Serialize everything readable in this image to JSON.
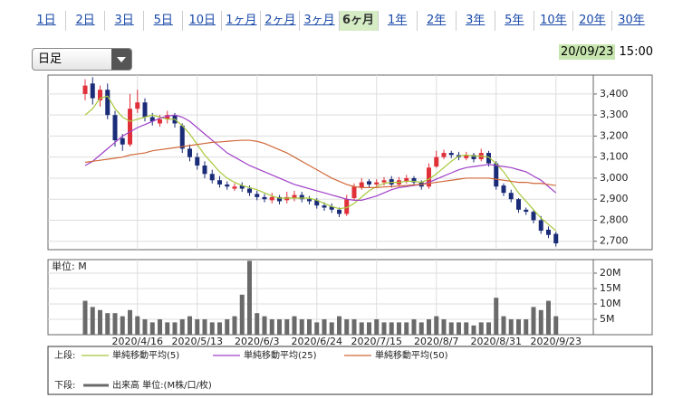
{
  "tabs": [
    "1日",
    "2日",
    "3日",
    "5日",
    "10日",
    "1ヶ月",
    "2ヶ月",
    "3ヶ月",
    "6ヶ月",
    "1年",
    "2年",
    "3年",
    "5年",
    "10年",
    "20年",
    "30年"
  ],
  "selected_tab": 8,
  "dropdown": "日足",
  "timestamp": {
    "date": "20/09/23",
    "time": "15:00"
  },
  "chart_data": [
    {
      "type": "candlestick",
      "legend_prefix": "上段:",
      "up_color": "#e0303a",
      "down_color": "#1a2c78",
      "open": [
        3400,
        3450,
        3370,
        3420,
        3300,
        3190,
        3160,
        3330,
        3360,
        3290,
        3260,
        3280,
        3300,
        3250,
        3140,
        3100,
        3060,
        3020,
        2990,
        2970,
        2950,
        2965,
        2950,
        2925,
        2910,
        2895,
        2910,
        2895,
        2905,
        2920,
        2900,
        2895,
        2870,
        2865,
        2850,
        2830,
        2905,
        2955,
        2985,
        2970,
        2980,
        2995,
        2970,
        2985,
        3000,
        2980,
        2960,
        3055,
        3100,
        3120,
        3110,
        3095,
        3110,
        3090,
        3120,
        3070,
        2965,
        2930,
        2900,
        2850,
        2840,
        2800,
        2755,
        2735
      ],
      "high": [
        3470,
        3480,
        3440,
        3450,
        3320,
        3210,
        3400,
        3420,
        3380,
        3310,
        3300,
        3320,
        3310,
        3260,
        3160,
        3120,
        3080,
        3040,
        3010,
        2985,
        2975,
        2980,
        2965,
        2940,
        2925,
        2930,
        2920,
        2935,
        2940,
        2935,
        2915,
        2905,
        2885,
        2880,
        2860,
        2920,
        2975,
        3000,
        2995,
        2995,
        3005,
        3010,
        3005,
        3015,
        3010,
        2990,
        3070,
        3130,
        3135,
        3130,
        3125,
        3125,
        3120,
        3140,
        3130,
        3080,
        2975,
        2945,
        2905,
        2860,
        2850,
        2820,
        2770,
        2745
      ],
      "low": [
        3370,
        3350,
        3340,
        3280,
        3150,
        3130,
        3150,
        3310,
        3270,
        3250,
        3245,
        3260,
        3240,
        3120,
        3080,
        3040,
        3000,
        2975,
        2955,
        2945,
        2940,
        2935,
        2915,
        2895,
        2885,
        2880,
        2875,
        2880,
        2890,
        2885,
        2875,
        2855,
        2845,
        2835,
        2815,
        2820,
        2895,
        2945,
        2955,
        2960,
        2965,
        2955,
        2960,
        2975,
        2965,
        2945,
        2950,
        3050,
        3090,
        3095,
        3085,
        3085,
        3075,
        3080,
        3055,
        2945,
        2915,
        2885,
        2835,
        2825,
        2785,
        2735,
        2715,
        2675
      ],
      "close": [
        3440,
        3380,
        3420,
        3300,
        3180,
        3160,
        3330,
        3360,
        3290,
        3270,
        3280,
        3300,
        3260,
        3140,
        3100,
        3060,
        3020,
        2990,
        2970,
        2960,
        2960,
        2950,
        2930,
        2910,
        2900,
        2910,
        2890,
        2910,
        2920,
        2900,
        2890,
        2870,
        2860,
        2850,
        2830,
        2900,
        2960,
        2980,
        2970,
        2980,
        2990,
        2970,
        2990,
        3000,
        2980,
        2960,
        3050,
        3100,
        3120,
        3110,
        3100,
        3110,
        3090,
        3120,
        3070,
        2960,
        2930,
        2900,
        2850,
        2840,
        2800,
        2750,
        2730,
        2690
      ],
      "series": [
        {
          "name": "単純移動平均(5)",
          "color": "#a8c83a",
          "values": [
            3300,
            3330,
            3380,
            3390,
            3330,
            3290,
            3270,
            3280,
            3290,
            3300,
            3290,
            3280,
            3280,
            3250,
            3210,
            3160,
            3110,
            3070,
            3030,
            3000,
            2980,
            2965,
            2955,
            2945,
            2930,
            2915,
            2905,
            2905,
            2905,
            2905,
            2905,
            2895,
            2880,
            2865,
            2855,
            2860,
            2880,
            2910,
            2940,
            2960,
            2975,
            2980,
            2980,
            2985,
            2985,
            2980,
            2995,
            3020,
            3050,
            3080,
            3105,
            3110,
            3105,
            3105,
            3100,
            3070,
            3030,
            2980,
            2930,
            2890,
            2850,
            2810,
            2780,
            2750
          ]
        },
        {
          "name": "単純移動平均(25)",
          "color": "#a040c8",
          "values": [
            3060,
            3080,
            3110,
            3140,
            3170,
            3200,
            3220,
            3240,
            3255,
            3270,
            3285,
            3295,
            3300,
            3290,
            3270,
            3240,
            3210,
            3180,
            3150,
            3120,
            3100,
            3080,
            3060,
            3045,
            3030,
            3015,
            3000,
            2985,
            2970,
            2960,
            2950,
            2940,
            2930,
            2920,
            2910,
            2900,
            2895,
            2895,
            2905,
            2915,
            2930,
            2945,
            2955,
            2960,
            2965,
            2970,
            2980,
            2995,
            3010,
            3025,
            3040,
            3050,
            3055,
            3060,
            3065,
            3060,
            3055,
            3050,
            3040,
            3030,
            3010,
            2990,
            2960,
            2930
          ]
        },
        {
          "name": "単純移動平均(50)",
          "color": "#d0683a",
          "values": [
            3075,
            3080,
            3085,
            3090,
            3095,
            3100,
            3110,
            3115,
            3120,
            3130,
            3135,
            3140,
            3145,
            3150,
            3155,
            3160,
            3165,
            3170,
            3172,
            3175,
            3178,
            3180,
            3180,
            3175,
            3165,
            3150,
            3135,
            3120,
            3100,
            3080,
            3060,
            3040,
            3020,
            3000,
            2985,
            2970,
            2960,
            2955,
            2955,
            2955,
            2958,
            2960,
            2962,
            2965,
            2968,
            2970,
            2975,
            2980,
            2985,
            2990,
            2995,
            3000,
            3000,
            3000,
            3000,
            2995,
            2990,
            2985,
            2980,
            2980,
            2975,
            2975,
            2970,
            2965
          ]
        }
      ],
      "ylim": [
        2660,
        3490
      ],
      "yticks": [
        {
          "value": 2700,
          "label": "2,700"
        },
        {
          "value": 2800,
          "label": "2,800"
        },
        {
          "value": 2900,
          "label": "2,900"
        },
        {
          "value": 3000,
          "label": "3,000"
        },
        {
          "value": 3100,
          "label": "3,100"
        },
        {
          "value": 3200,
          "label": "3,200"
        },
        {
          "value": 3300,
          "label": "3,300"
        },
        {
          "value": 3400,
          "label": "3,400"
        }
      ]
    },
    {
      "type": "bar",
      "legend_prefix": "下段:",
      "unit_label": "単位: M",
      "categories": [
        null,
        null,
        null,
        null,
        null,
        null,
        null,
        "2020/4/16",
        null,
        null,
        null,
        null,
        null,
        null,
        null,
        "2020/5/13",
        null,
        null,
        null,
        null,
        null,
        null,
        null,
        "2020/6/3",
        null,
        null,
        null,
        null,
        null,
        null,
        null,
        "2020/6/24",
        null,
        null,
        null,
        null,
        null,
        null,
        null,
        "2020/7/15",
        null,
        null,
        null,
        null,
        null,
        null,
        null,
        "2020/8/7",
        null,
        null,
        null,
        null,
        null,
        null,
        null,
        "2020/8/31",
        null,
        null,
        null,
        null,
        null,
        null,
        null,
        "2020/9/23"
      ],
      "series": [
        {
          "name": "出来高 単位:(M株/口/枚)",
          "color": "#6a6a6a",
          "values": [
            11,
            9,
            8,
            7,
            7,
            6,
            8,
            6,
            5,
            4,
            5,
            4,
            4,
            5,
            6,
            5,
            5,
            4,
            4,
            5,
            6,
            13,
            24,
            7,
            6,
            5,
            5,
            5,
            6,
            5,
            5,
            4,
            5,
            4,
            6,
            5,
            5,
            4,
            4,
            5,
            4,
            4,
            4,
            4,
            5,
            4,
            5,
            6,
            5,
            4,
            4,
            4,
            3,
            4,
            4,
            12,
            6,
            5,
            5,
            5,
            9,
            8,
            11,
            6
          ]
        }
      ],
      "ylim": [
        0,
        24.4
      ],
      "yticks": [
        {
          "value": 5,
          "label": "5M"
        },
        {
          "value": 10,
          "label": "10M"
        },
        {
          "value": 15,
          "label": "15M"
        },
        {
          "value": 20,
          "label": "20M"
        }
      ]
    }
  ]
}
